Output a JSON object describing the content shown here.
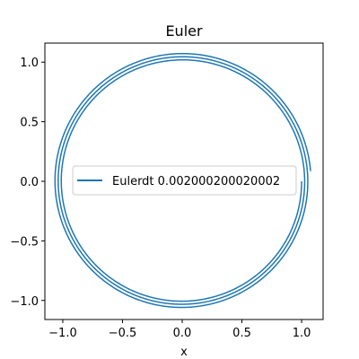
{
  "chart_data": {
    "type": "line",
    "title": "Euler",
    "xlabel": "x",
    "ylabel": "",
    "xlim": [
      -1.15,
      1.18
    ],
    "ylim": [
      -1.16,
      1.16
    ],
    "xticks": [
      -1.0,
      -0.5,
      0.0,
      0.5,
      1.0
    ],
    "xtick_labels": [
      "−1.0",
      "−0.5",
      "0.0",
      "0.5",
      "1.0"
    ],
    "yticks": [
      -1.0,
      -0.5,
      0.0,
      0.5,
      1.0
    ],
    "ytick_labels": [
      "−1.0",
      "−0.5",
      "0.0",
      "0.5",
      "1.0"
    ],
    "grid": false,
    "legend_position": "center",
    "series": [
      {
        "name": "Eulerdt 0.002000200020002",
        "color": "#1f77b4",
        "shape": "outward spiral, explicit Euler on harmonic oscillator",
        "start": [
          1.0,
          0.0
        ],
        "end": [
          1.075,
          0.085
        ],
        "turns": 3
      }
    ]
  }
}
